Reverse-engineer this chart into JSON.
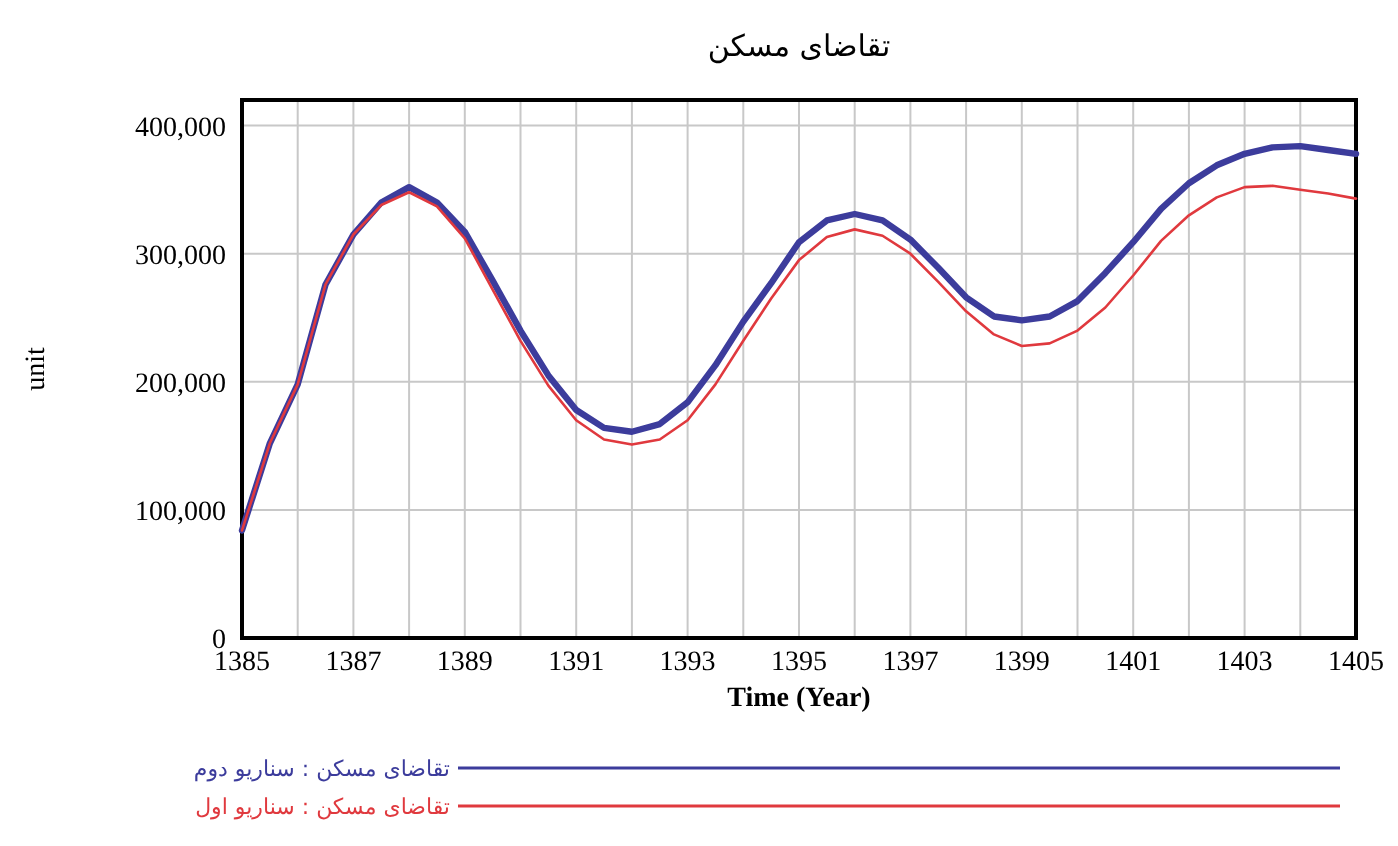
{
  "chart_data": {
    "type": "line",
    "title": "تقاضای مسکن",
    "xlabel": "Time (Year)",
    "ylabel": "unit",
    "x": [
      1385,
      1385.5,
      1386,
      1386.5,
      1387,
      1387.5,
      1388,
      1388.5,
      1389,
      1389.5,
      1390,
      1390.5,
      1391,
      1391.5,
      1392,
      1392.5,
      1393,
      1393.5,
      1394,
      1394.5,
      1395,
      1395.5,
      1396,
      1396.5,
      1397,
      1397.5,
      1398,
      1398.5,
      1399,
      1399.5,
      1400,
      1400.5,
      1401,
      1401.5,
      1402,
      1402.5,
      1403,
      1403.5,
      1404,
      1404.5,
      1405
    ],
    "series": [
      {
        "name": "تقاضای مسکن : سناریو دوم",
        "color": "#3c3c9c",
        "values": [
          84000,
          152000,
          198000,
          276000,
          315000,
          340000,
          352000,
          340000,
          317000,
          279000,
          240000,
          205000,
          178000,
          164000,
          161000,
          167000,
          184000,
          213000,
          247000,
          277000,
          309000,
          326000,
          331000,
          326000,
          311000,
          289000,
          266000,
          251000,
          248000,
          251000,
          263000,
          285000,
          309000,
          335000,
          355000,
          369000,
          378000,
          383000,
          384000,
          381000,
          378000
        ]
      },
      {
        "name": "تقاضای مسکن : سناریو اول",
        "color": "#e0393e",
        "values": [
          84000,
          152000,
          198000,
          276000,
          315000,
          338000,
          348000,
          337000,
          312000,
          272000,
          232000,
          197000,
          170000,
          155000,
          151000,
          155000,
          170000,
          198000,
          232000,
          265000,
          295000,
          313000,
          319000,
          314000,
          300000,
          278000,
          255000,
          237000,
          228000,
          230000,
          240000,
          258000,
          283000,
          310000,
          330000,
          344000,
          352000,
          353000,
          350000,
          347000,
          343000
        ]
      }
    ],
    "xlim": [
      1385,
      1405
    ],
    "xticks": [
      1385,
      {
        "value": 1386,
        "label": null
      },
      1387,
      {
        "value": 1388,
        "label": null
      },
      1389,
      {
        "value": 1390,
        "label": null
      },
      1391,
      {
        "value": 1392,
        "label": null
      },
      1393,
      {
        "value": 1394,
        "label": null
      },
      1395,
      {
        "value": 1396,
        "label": null
      },
      1397,
      {
        "value": 1398,
        "label": null
      },
      1399,
      {
        "value": 1400,
        "label": null
      },
      1401,
      {
        "value": 1402,
        "label": null
      },
      1403,
      {
        "value": 1404,
        "label": null
      },
      1405
    ],
    "ylim": [
      0,
      420000
    ],
    "yticks": [
      {
        "value": 0,
        "label": "0"
      },
      {
        "value": 100000,
        "label": "100,000"
      },
      {
        "value": 200000,
        "label": "200,000"
      },
      {
        "value": 300000,
        "label": "300,000"
      },
      {
        "value": 400000,
        "label": "400,000"
      }
    ],
    "grid": true,
    "legend": "bottom",
    "marker": "none",
    "line_style": "solid"
  }
}
